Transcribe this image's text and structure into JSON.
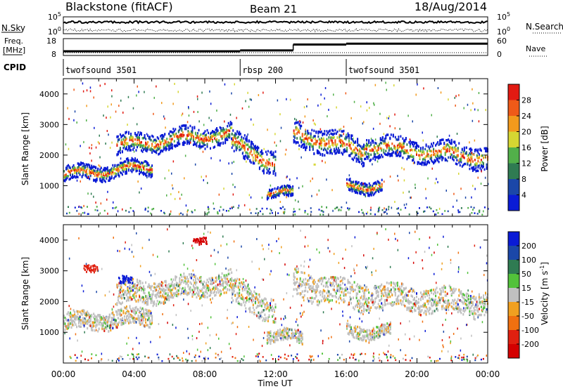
{
  "header": {
    "station": "Blackstone (fitACF)",
    "beam": "Beam 21",
    "date": "18/Aug/2014"
  },
  "strip": {
    "nsky_label": "N.Sky",
    "nsky_ticks": [
      "10^5",
      "10^0"
    ],
    "nsearch_label": "N.Search",
    "nsearch_ticks": [
      "10^5",
      "10^0"
    ],
    "freq_label": "Freq.",
    "freq_unit": "[MHz]",
    "freq_ticks": [
      "18",
      "8"
    ],
    "nave_label": "Nave",
    "nave_ticks": [
      "60",
      "0"
    ],
    "cpid_label": "CPID",
    "cpid_segments": [
      {
        "name": "twofsound 3501",
        "start": 0,
        "end": 10
      },
      {
        "name": "rbsp 200",
        "start": 10,
        "end": 16
      },
      {
        "name": "twofsound 3501",
        "start": 16,
        "end": 24
      }
    ],
    "freq_steps": [
      {
        "start": 0,
        "end": 10,
        "value": 10.5
      },
      {
        "start": 10,
        "end": 13,
        "value": 11
      },
      {
        "start": 13,
        "end": 16,
        "value": 14.5
      },
      {
        "start": 16,
        "end": 24,
        "value": 15
      }
    ]
  },
  "chart_data": [
    {
      "type": "heatmap",
      "name": "power",
      "ylabel": "Slant Range [km]",
      "xlabel": "Time UT",
      "xlim": [
        0,
        24
      ],
      "ylim": [
        0,
        4500
      ],
      "y_ticks": [
        "1000",
        "2000",
        "3000",
        "4000"
      ],
      "colorbar": {
        "label": "Power [dB]",
        "ticks": [
          "4",
          "8",
          "12",
          "16",
          "20",
          "24",
          "28"
        ],
        "colors": [
          "#0a1bd6",
          "#1b47a8",
          "#2f7b52",
          "#52b04a",
          "#d6d632",
          "#f29a1c",
          "#ef5a18",
          "#e21a12"
        ]
      },
      "bands": [
        {
          "t0": 0.0,
          "t1": 5.0,
          "c0": 1350,
          "c1": 1600,
          "w": 300
        },
        {
          "t0": 3.0,
          "t1": 9.5,
          "c0": 2300,
          "c1": 2700,
          "w": 400
        },
        {
          "t0": 9.5,
          "t1": 12.0,
          "c0": 2400,
          "c1": 1700,
          "w": 500
        },
        {
          "t0": 11.5,
          "t1": 13.0,
          "c0": 800,
          "c1": 700,
          "w": 200
        },
        {
          "t0": 13.0,
          "t1": 17.0,
          "c0": 2700,
          "c1": 2100,
          "w": 500
        },
        {
          "t0": 16.0,
          "t1": 18.0,
          "c0": 950,
          "c1": 1000,
          "w": 250
        },
        {
          "t0": 17.0,
          "t1": 24.0,
          "c0": 2300,
          "c1": 1900,
          "w": 450
        }
      ]
    },
    {
      "type": "heatmap",
      "name": "velocity",
      "ylabel": "Slant Range [km]",
      "xlabel": "Time UT",
      "xlim": [
        0,
        24
      ],
      "ylim": [
        0,
        4500
      ],
      "y_ticks": [
        "1000",
        "2000",
        "3000",
        "4000"
      ],
      "x_ticks": [
        "00:00",
        "04:00",
        "08:00",
        "12:00",
        "16:00",
        "20:00",
        "00:00"
      ],
      "colorbar": {
        "label": "Velocity [m s-1]",
        "ticks": [
          "200",
          "100",
          "50",
          "15",
          "-15",
          "-50",
          "-100",
          "-200"
        ],
        "colors": [
          "#0a1bd6",
          "#1b47a8",
          "#2f7b52",
          "#52c23a",
          "#c0c0c0",
          "#f0a020",
          "#f07010",
          "#e02010",
          "#d40000"
        ]
      },
      "bands": [
        {
          "t0": 0.0,
          "t1": 5.0,
          "c0": 1300,
          "c1": 1500,
          "w": 350
        },
        {
          "t0": 3.0,
          "t1": 9.5,
          "c0": 2200,
          "c1": 2600,
          "w": 450
        },
        {
          "t0": 9.5,
          "t1": 12.0,
          "c0": 2300,
          "c1": 1700,
          "w": 500
        },
        {
          "t0": 11.5,
          "t1": 13.5,
          "c0": 900,
          "c1": 800,
          "w": 250
        },
        {
          "t0": 13.0,
          "t1": 17.0,
          "c0": 2600,
          "c1": 2100,
          "w": 550
        },
        {
          "t0": 16.0,
          "t1": 18.5,
          "c0": 1000,
          "c1": 1050,
          "w": 250
        },
        {
          "t0": 17.0,
          "t1": 24.0,
          "c0": 2200,
          "c1": 1900,
          "w": 500
        }
      ],
      "patches": [
        {
          "t": 3.5,
          "r": 2750,
          "color": "#0a1bd6"
        },
        {
          "t": 1.5,
          "r": 3100,
          "color": "#e02010"
        },
        {
          "t": 7.7,
          "r": 4000,
          "color": "#d40000"
        }
      ]
    }
  ]
}
